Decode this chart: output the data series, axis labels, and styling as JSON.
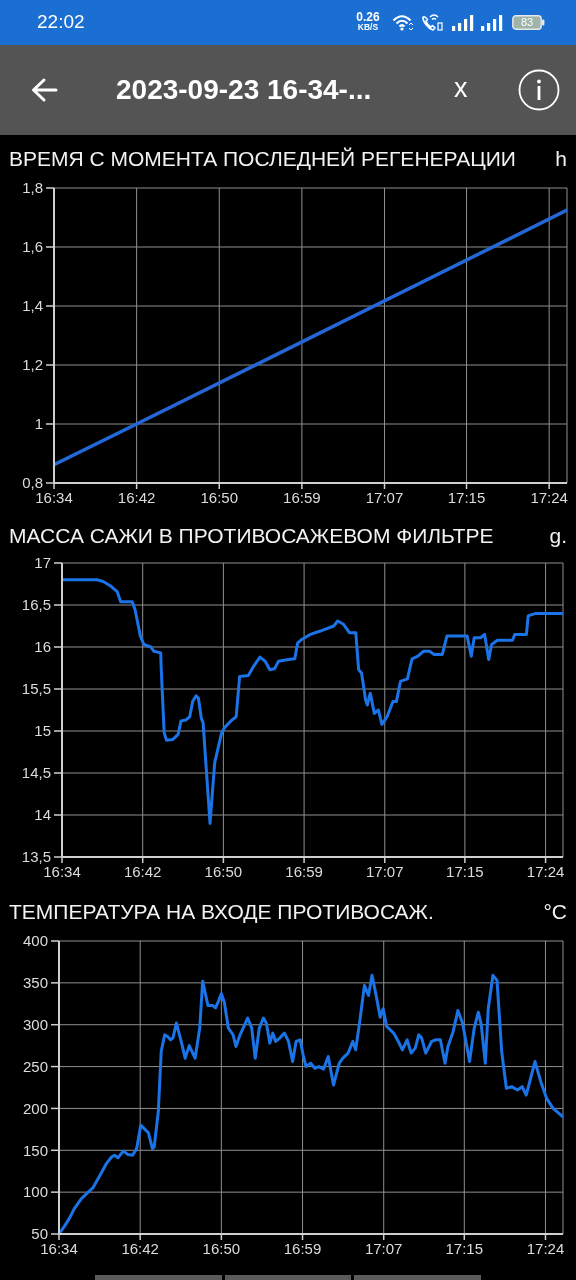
{
  "chart_data": [
    {
      "type": "other",
      "title": "2023-09-23 16-34-...",
      "annotations": [
        "22:02",
        "0.26",
        "KB/S",
        "83",
        "x"
      ]
    },
    {
      "type": "line",
      "title": "ВРЕМЯ С МОМЕНТА ПОСЛЕДНЕЙ РЕГЕНЕРАЦИИ",
      "ylabel": "h",
      "color": "#2468d8",
      "grid": true,
      "x": [
        16.563,
        16.702,
        17.426
      ],
      "values": [
        0.862,
        1.0,
        1.725
      ],
      "xlim": [
        16.563,
        17.426
      ],
      "xticks": [
        {
          "value": 16.563,
          "label": "16:34"
        },
        {
          "value": 16.702,
          "label": "16:42"
        },
        {
          "value": 16.841,
          "label": "16:50"
        },
        {
          "value": 16.98,
          "label": "16:59"
        },
        {
          "value": 17.119,
          "label": "17:07"
        },
        {
          "value": 17.257,
          "label": "17:15"
        },
        {
          "value": 17.396,
          "label": "17:24"
        }
      ],
      "ylim": [
        0.8,
        1.8
      ],
      "yticks": [
        {
          "value": 0.8,
          "label": "0,8"
        },
        1,
        {
          "value": 1.2,
          "label": "1,2"
        },
        {
          "value": 1.4,
          "label": "1,4"
        },
        {
          "value": 1.6,
          "label": "1,6"
        },
        {
          "value": 1.8,
          "label": "1,8"
        }
      ]
    },
    {
      "type": "line",
      "title": "МАССА САЖИ В ПРОТИВОСАЖЕВОМ ФИЛЬТРЕ",
      "ylabel": "g.",
      "color": "#1b73e8",
      "grid": true,
      "x": [
        16.563,
        16.623,
        16.634,
        16.646,
        16.658,
        16.664,
        16.684,
        16.689,
        16.698,
        16.704,
        16.716,
        16.721,
        16.733,
        16.734,
        16.739,
        16.743,
        16.754,
        16.763,
        16.768,
        16.776,
        16.783,
        16.788,
        16.794,
        16.798,
        16.803,
        16.806,
        16.818,
        16.826,
        16.838,
        16.843,
        16.854,
        16.863,
        16.869,
        16.884,
        16.893,
        16.904,
        16.913,
        16.921,
        16.929,
        16.936,
        16.953,
        16.964,
        16.969,
        16.976,
        16.991,
        17.008,
        17.031,
        17.038,
        17.048,
        17.058,
        17.069,
        17.074,
        17.079,
        17.086,
        17.089,
        17.094,
        17.101,
        17.108,
        17.114,
        17.123,
        17.133,
        17.139,
        17.146,
        17.158,
        17.166,
        17.176,
        17.186,
        17.196,
        17.204,
        17.218,
        17.226,
        17.261,
        17.268,
        17.273,
        17.284,
        17.291,
        17.298,
        17.303,
        17.313,
        17.339,
        17.343,
        17.363,
        17.366,
        17.379,
        17.426
      ],
      "values": [
        16.8,
        16.8,
        16.78,
        16.73,
        16.66,
        16.54,
        16.54,
        16.44,
        16.13,
        16.03,
        16,
        15.95,
        15.93,
        15.73,
        14.98,
        14.89,
        14.9,
        14.96,
        15.12,
        15.13,
        15.17,
        15.35,
        15.42,
        15.39,
        15.15,
        15.1,
        13.9,
        14.62,
        14.98,
        15.04,
        15.12,
        15.17,
        15.65,
        15.66,
        15.77,
        15.88,
        15.83,
        15.73,
        15.74,
        15.83,
        15.85,
        15.86,
        16.05,
        16.09,
        16.15,
        16.19,
        16.25,
        16.31,
        16.27,
        16.17,
        16.17,
        15.73,
        15.69,
        15.37,
        15.31,
        15.45,
        15.21,
        15.25,
        15.08,
        15.17,
        15.35,
        15.35,
        15.59,
        15.62,
        15.86,
        15.89,
        15.95,
        15.95,
        15.91,
        15.91,
        16.13,
        16.13,
        15.89,
        16.11,
        16.11,
        16.15,
        15.85,
        16.03,
        16.08,
        16.08,
        16.15,
        16.15,
        16.37,
        16.4,
        16.4
      ],
      "xlim": [
        16.563,
        17.426
      ],
      "xticks": [
        {
          "value": 16.563,
          "label": "16:34"
        },
        {
          "value": 16.702,
          "label": "16:42"
        },
        {
          "value": 16.841,
          "label": "16:50"
        },
        {
          "value": 16.98,
          "label": "16:59"
        },
        {
          "value": 17.119,
          "label": "17:07"
        },
        {
          "value": 17.257,
          "label": "17:15"
        },
        {
          "value": 17.396,
          "label": "17:24"
        }
      ],
      "ylim": [
        13.5,
        17
      ],
      "yticks": [
        {
          "value": 13.5,
          "label": "13,5"
        },
        14,
        {
          "value": 14.5,
          "label": "14,5"
        },
        15,
        {
          "value": 15.5,
          "label": "15,5"
        },
        16,
        {
          "value": 16.5,
          "label": "16,5"
        },
        17
      ]
    },
    {
      "type": "line",
      "title": "ТЕМПЕРАТУРА НА ВХОДЕ ПРОТИВОСАЖ.",
      "ylabel": "°C",
      "color": "#1b73e8",
      "grid": true,
      "x": [
        16.563,
        16.573,
        16.581,
        16.589,
        16.601,
        16.613,
        16.621,
        16.633,
        16.644,
        16.653,
        16.658,
        16.664,
        16.673,
        16.681,
        16.689,
        16.696,
        16.703,
        16.706,
        16.716,
        16.723,
        16.726,
        16.733,
        16.738,
        16.744,
        16.749,
        16.754,
        16.758,
        16.764,
        16.773,
        16.779,
        16.786,
        16.796,
        16.804,
        16.809,
        16.818,
        16.826,
        16.831,
        16.836,
        16.841,
        16.846,
        16.853,
        16.861,
        16.866,
        16.873,
        16.881,
        16.886,
        16.893,
        16.899,
        16.906,
        16.913,
        16.918,
        16.924,
        16.929,
        16.934,
        16.941,
        16.949,
        16.956,
        16.963,
        16.969,
        16.976,
        16.981,
        16.986,
        16.994,
        17.001,
        17.008,
        17.016,
        17.024,
        17.033,
        17.043,
        17.049,
        17.058,
        17.066,
        17.071,
        17.078,
        17.086,
        17.093,
        17.099,
        17.106,
        17.113,
        17.118,
        17.124,
        17.136,
        17.144,
        17.151,
        17.159,
        17.166,
        17.173,
        17.179,
        17.184,
        17.191,
        17.201,
        17.209,
        17.216,
        17.224,
        17.229,
        17.238,
        17.246,
        17.254,
        17.266,
        17.274,
        17.281,
        17.286,
        17.293,
        17.298,
        17.306,
        17.313,
        17.321,
        17.329,
        17.338,
        17.348,
        17.356,
        17.363,
        17.378,
        17.388,
        17.398,
        17.409,
        17.426
      ],
      "values": [
        50,
        60,
        69,
        80,
        92,
        100,
        105,
        120,
        134,
        142,
        144,
        141,
        149,
        145,
        144,
        152,
        180,
        178,
        171,
        152,
        154,
        196,
        268,
        288,
        286,
        282,
        284,
        302,
        278,
        260,
        275,
        260,
        296,
        352,
        323,
        323,
        320,
        328,
        337,
        327,
        296,
        288,
        274,
        288,
        300,
        308,
        296,
        260,
        296,
        308,
        302,
        278,
        290,
        280,
        284,
        290,
        280,
        256,
        280,
        282,
        264,
        250,
        254,
        248,
        250,
        247,
        262,
        228,
        254,
        260,
        266,
        280,
        270,
        304,
        347,
        335,
        359,
        335,
        309,
        319,
        298,
        290,
        280,
        270,
        282,
        266,
        272,
        288,
        284,
        266,
        280,
        282,
        282,
        254,
        274,
        292,
        317,
        302,
        256,
        296,
        315,
        300,
        254,
        319,
        359,
        353,
        268,
        224,
        226,
        222,
        226,
        216,
        256,
        232,
        212,
        200,
        190
      ],
      "xlim": [
        16.563,
        17.426
      ],
      "xticks": [
        {
          "value": 16.563,
          "label": "16:34"
        },
        {
          "value": 16.702,
          "label": "16:42"
        },
        {
          "value": 16.841,
          "label": "16:50"
        },
        {
          "value": 16.98,
          "label": "16:59"
        },
        {
          "value": 17.119,
          "label": "17:07"
        },
        {
          "value": 17.257,
          "label": "17:15"
        },
        {
          "value": 17.396,
          "label": "17:24"
        }
      ],
      "ylim": [
        50,
        400
      ],
      "yticks": [
        50,
        100,
        150,
        200,
        250,
        300,
        350,
        400
      ]
    }
  ]
}
